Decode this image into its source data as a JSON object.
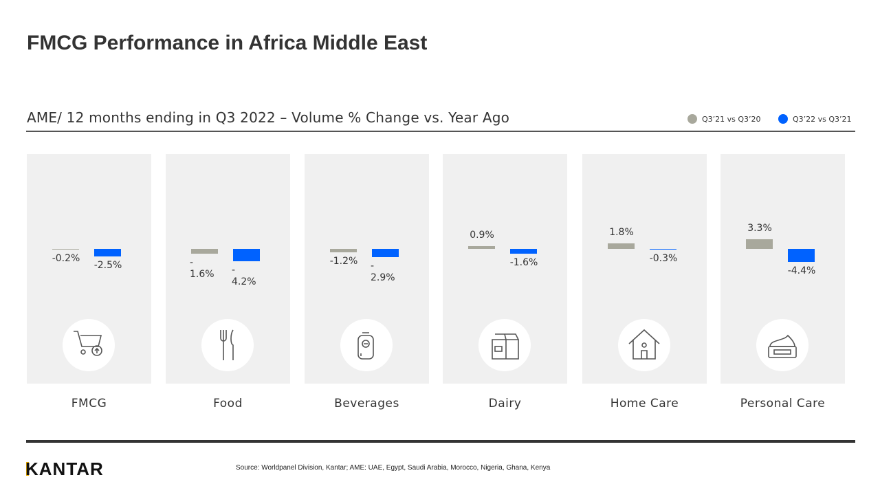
{
  "title": "FMCG Performance in Africa Middle East",
  "subtitle": "AME/ 12 months ending in Q3 2022 – Volume % Change vs. Year Ago",
  "source": "Source: Worldpanel Division, Kantar; AME:  UAE,  Egypt,  Saudi Arabia, Morocco, Nigeria, Ghana, Kenya",
  "logo": "KANTAR",
  "chart_data": {
    "type": "bar",
    "title": "AME/ 12 months ending in Q3 2022 – Volume % Change vs. Year Ago",
    "categories": [
      "FMCG",
      "Food",
      "Beverages",
      "Dairy",
      "Home Care",
      "Personal Care"
    ],
    "icons": [
      "shopping-cart-icon",
      "fork-knife-icon",
      "bottle-icon",
      "milk-carton-icon",
      "house-icon",
      "cream-jar-icon"
    ],
    "legend_position": "top-right",
    "series": [
      {
        "name": "Q3’21 vs Q3’20",
        "color": "#a8a89c",
        "values": [
          -0.2,
          -1.6,
          -1.2,
          0.9,
          1.8,
          3.3
        ],
        "labels": [
          "-0.2%",
          "-\n1.6%",
          "-1.2%",
          "0.9%",
          "1.8%",
          "3.3%"
        ]
      },
      {
        "name": "Q3’22 vs Q3’21",
        "color": "#0062ff",
        "values": [
          -2.5,
          -4.2,
          -2.9,
          -1.6,
          -0.3,
          -4.4
        ],
        "labels": [
          "-2.5%",
          "-\n4.2%",
          "-\n2.9%",
          "-1.6%",
          "-0.3%",
          "-4.4%"
        ]
      }
    ]
  }
}
